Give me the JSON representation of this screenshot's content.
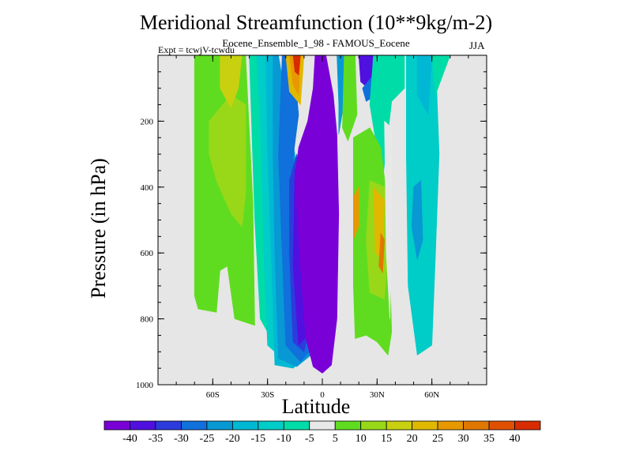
{
  "title": "Meridional Streamfunction (10**9kg/m-2)",
  "subtitle": "Eocene_Ensemble_1_98 - FAMOUS_Eocene",
  "expt_label": "Expt = tcwjV-tcwdu",
  "season": "JJA",
  "colors": {
    "background": "#e6e6e6",
    "palette": [
      "#7a00d8",
      "#5010e0",
      "#2c3cdc",
      "#1070dc",
      "#0898d4",
      "#00b8d4",
      "#00ccc8",
      "#00dca8",
      "#e8e8e8",
      "#60dc20",
      "#98d818",
      "#c8d010",
      "#e0b800",
      "#e89800",
      "#e07800",
      "#e05000",
      "#d82c00"
    ]
  },
  "chart_data": {
    "type": "contour",
    "title": "Meridional Streamfunction (10**9kg/m-2)",
    "xlabel": "Latitude",
    "ylabel": "Pressure (in hPa)",
    "xlim": [
      -90,
      90
    ],
    "ylim": [
      1000,
      0
    ],
    "xticks": [
      {
        "value": -60,
        "label": "60S"
      },
      {
        "value": -30,
        "label": "30S"
      },
      {
        "value": 0,
        "label": "0"
      },
      {
        "value": 30,
        "label": "30N"
      },
      {
        "value": 60,
        "label": "60N"
      }
    ],
    "yticks": [
      {
        "value": 200,
        "label": "200"
      },
      {
        "value": 400,
        "label": "400"
      },
      {
        "value": 600,
        "label": "600"
      },
      {
        "value": 800,
        "label": "800"
      },
      {
        "value": 1000,
        "label": "1000"
      }
    ],
    "colorbar_levels": [
      -40,
      -35,
      -30,
      -25,
      -20,
      -15,
      -10,
      -5,
      5,
      10,
      15,
      20,
      25,
      30,
      35,
      40
    ],
    "colorbar_labels": [
      "-40",
      "-35",
      "-30",
      "-25",
      "-20",
      "-15",
      "-10",
      "-5",
      "5",
      "10",
      "15",
      "20",
      "25",
      "30",
      "35",
      "40"
    ],
    "regions": [
      {
        "class": 9,
        "points": [
          [
            -70,
            0
          ],
          [
            -60,
            0
          ],
          [
            -60,
            300
          ],
          [
            -56,
            650
          ],
          [
            -58,
            780
          ],
          [
            -68,
            770
          ],
          [
            -70,
            730
          ]
        ]
      },
      {
        "class": 9,
        "points": [
          [
            -60,
            0
          ],
          [
            -42,
            0
          ],
          [
            -38,
            450
          ],
          [
            -37,
            820
          ],
          [
            -48,
            800
          ],
          [
            -52,
            640
          ],
          [
            -58,
            660
          ],
          [
            -60,
            300
          ]
        ]
      },
      {
        "class": 10,
        "points": [
          [
            -62,
            200
          ],
          [
            -50,
            120
          ],
          [
            -42,
            150
          ],
          [
            -42,
            420
          ],
          [
            -44,
            520
          ],
          [
            -50,
            480
          ],
          [
            -58,
            380
          ],
          [
            -62,
            300
          ]
        ]
      },
      {
        "class": 11,
        "points": [
          [
            -56,
            0
          ],
          [
            -44,
            0
          ],
          [
            -46,
            100
          ],
          [
            -50,
            160
          ],
          [
            -56,
            100
          ]
        ]
      },
      {
        "class": 7,
        "points": [
          [
            -40,
            0
          ],
          [
            -34,
            0
          ],
          [
            -26,
            250
          ],
          [
            -22,
            700
          ],
          [
            -16,
            870
          ],
          [
            -28,
            860
          ],
          [
            -34,
            800
          ],
          [
            -37,
            500
          ]
        ]
      },
      {
        "class": 6,
        "points": [
          [
            -36,
            0
          ],
          [
            -31,
            0
          ],
          [
            -20,
            300
          ],
          [
            -16,
            700
          ],
          [
            -10,
            900
          ],
          [
            -22,
            920
          ],
          [
            -30,
            880
          ],
          [
            -32,
            600
          ],
          [
            -34,
            200
          ]
        ]
      },
      {
        "class": 5,
        "points": [
          [
            -31,
            0
          ],
          [
            -27,
            0
          ],
          [
            -22,
            180
          ],
          [
            -16,
            380
          ],
          [
            -12,
            680
          ],
          [
            -6,
            900
          ],
          [
            -16,
            950
          ],
          [
            -26,
            940
          ],
          [
            -28,
            600
          ],
          [
            -30,
            300
          ]
        ]
      },
      {
        "class": 4,
        "points": [
          [
            -27,
            0
          ],
          [
            -24,
            0
          ],
          [
            -18,
            200
          ],
          [
            -15,
            300
          ],
          [
            -9,
            700
          ],
          [
            -4,
            900
          ],
          [
            -14,
            945
          ],
          [
            -24,
            920
          ],
          [
            -26,
            600
          ],
          [
            -27,
            300
          ]
        ]
      },
      {
        "class": 3,
        "points": [
          [
            -22,
            0
          ],
          [
            -16,
            0
          ],
          [
            -13,
            180
          ],
          [
            -16,
            310
          ],
          [
            -10,
            600
          ],
          [
            -4,
            880
          ],
          [
            -12,
            930
          ],
          [
            -20,
            880
          ],
          [
            -22,
            600
          ],
          [
            -24,
            300
          ]
        ]
      },
      {
        "class": 2,
        "points": [
          [
            -18,
            380
          ],
          [
            -14,
            300
          ],
          [
            -8,
            500
          ],
          [
            -6,
            800
          ],
          [
            -10,
            900
          ],
          [
            -16,
            870
          ],
          [
            -18,
            600
          ]
        ]
      },
      {
        "class": 1,
        "points": [
          [
            -15,
            350
          ],
          [
            -10,
            280
          ],
          [
            -6,
            600
          ],
          [
            -8,
            850
          ],
          [
            -13,
            880
          ],
          [
            -16,
            640
          ]
        ]
      },
      {
        "class": 0,
        "points": [
          [
            -4,
            0
          ],
          [
            2,
            0
          ],
          [
            6,
            120
          ],
          [
            8,
            240
          ],
          [
            9,
            480
          ],
          [
            8,
            800
          ],
          [
            5,
            940
          ],
          [
            0,
            965
          ],
          [
            -5,
            945
          ],
          [
            -9,
            860
          ],
          [
            -12,
            640
          ],
          [
            -15,
            370
          ],
          [
            -13,
            280
          ],
          [
            -8,
            200
          ],
          [
            -5,
            100
          ]
        ]
      },
      {
        "class": 12,
        "points": [
          [
            -20,
            0
          ],
          [
            -10,
            0
          ],
          [
            -12,
            150
          ],
          [
            -18,
            110
          ]
        ]
      },
      {
        "class": 13,
        "points": [
          [
            -18,
            0
          ],
          [
            -12,
            0
          ],
          [
            -13,
            120
          ],
          [
            -16,
            90
          ]
        ]
      },
      {
        "class": 16,
        "points": [
          [
            -16,
            0
          ],
          [
            -12,
            0
          ],
          [
            -13,
            60
          ],
          [
            -15,
            50
          ]
        ]
      },
      {
        "class": 4,
        "points": [
          [
            8,
            0
          ],
          [
            14,
            0
          ],
          [
            12,
            140
          ],
          [
            9,
            240
          ],
          [
            9,
            150
          ]
        ]
      },
      {
        "class": 9,
        "points": [
          [
            12,
            0
          ],
          [
            18,
            0
          ],
          [
            19,
            180
          ],
          [
            14,
            260
          ],
          [
            11,
            220
          ]
        ]
      },
      {
        "class": 1,
        "points": [
          [
            20,
            0
          ],
          [
            28,
            0
          ],
          [
            28,
            60
          ],
          [
            25,
            100
          ],
          [
            21,
            80
          ]
        ]
      },
      {
        "class": 3,
        "points": [
          [
            22,
            100
          ],
          [
            28,
            60
          ],
          [
            30,
            120
          ],
          [
            24,
            140
          ]
        ]
      },
      {
        "class": 7,
        "points": [
          [
            28,
            0
          ],
          [
            45,
            0
          ],
          [
            45,
            100
          ],
          [
            38,
            140
          ],
          [
            33,
            380
          ],
          [
            29,
            250
          ],
          [
            26,
            150
          ]
        ]
      },
      {
        "class": 9,
        "points": [
          [
            17,
            250
          ],
          [
            26,
            220
          ],
          [
            32,
            280
          ],
          [
            36,
            460
          ],
          [
            38,
            840
          ],
          [
            36,
            910
          ],
          [
            30,
            870
          ],
          [
            24,
            850
          ],
          [
            18,
            860
          ],
          [
            17,
            700
          ]
        ]
      },
      {
        "class": 10,
        "points": [
          [
            26,
            380
          ],
          [
            34,
            400
          ],
          [
            36,
            600
          ],
          [
            34,
            740
          ],
          [
            26,
            720
          ],
          [
            24,
            560
          ]
        ]
      },
      {
        "class": 12,
        "points": [
          [
            28,
            400
          ],
          [
            34,
            440
          ],
          [
            33,
            620
          ],
          [
            29,
            600
          ]
        ]
      },
      {
        "class": 13,
        "points": [
          [
            17,
            430
          ],
          [
            20,
            400
          ],
          [
            20,
            520
          ],
          [
            17,
            560
          ]
        ]
      },
      {
        "class": 14,
        "points": [
          [
            32,
            540
          ],
          [
            34,
            560
          ],
          [
            33,
            660
          ],
          [
            31,
            640
          ]
        ]
      },
      {
        "class": 8,
        "points": [
          [
            34,
            200
          ],
          [
            38,
            220
          ],
          [
            38,
            600
          ],
          [
            37,
            800
          ],
          [
            35,
            600
          ]
        ]
      },
      {
        "class": 6,
        "points": [
          [
            46,
            0
          ],
          [
            62,
            0
          ],
          [
            64,
            300
          ],
          [
            62,
            600
          ],
          [
            60,
            880
          ],
          [
            52,
            910
          ],
          [
            47,
            700
          ],
          [
            46,
            300
          ]
        ]
      },
      {
        "class": 5,
        "points": [
          [
            52,
            0
          ],
          [
            60,
            0
          ],
          [
            58,
            180
          ],
          [
            52,
            120
          ]
        ]
      },
      {
        "class": 4,
        "points": [
          [
            50,
            400
          ],
          [
            54,
            380
          ],
          [
            55,
            560
          ],
          [
            52,
            620
          ],
          [
            49,
            520
          ]
        ]
      },
      {
        "class": 7,
        "points": [
          [
            60,
            0
          ],
          [
            70,
            0
          ],
          [
            62,
            120
          ]
        ]
      }
    ]
  }
}
